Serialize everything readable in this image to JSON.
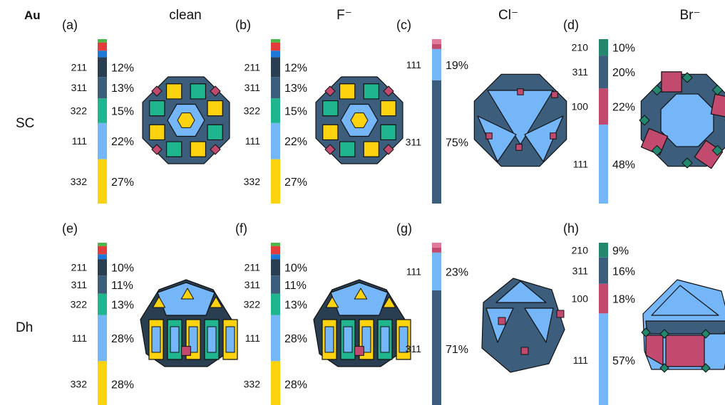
{
  "corner_label": "Au",
  "columns": [
    "clean",
    "F⁻",
    "Cl⁻",
    "Br⁻"
  ],
  "rows": [
    "SC",
    "Dh"
  ],
  "colors": {
    "332": "#FDD20E",
    "111": "#74B6F8",
    "322": "#1FB58F",
    "311": "#3C5E7C",
    "211": "#2A3E52",
    "210": "#23876E",
    "100": "#C24A6E",
    "blue": "#1E78D8",
    "red": "#E23C3C",
    "green": "#4CB848",
    "pink": "#E07A98"
  },
  "panels": [
    {
      "id": "(a)",
      "row": "SC",
      "column": "clean",
      "shape": "sc-rich",
      "bars": [
        {
          "facet": "332",
          "pct": 27,
          "label": "27%"
        },
        {
          "facet": "111",
          "pct": 22,
          "label": "22%"
        },
        {
          "facet": "322",
          "pct": 15,
          "label": "15%"
        },
        {
          "facet": "311",
          "pct": 13,
          "label": "13%"
        },
        {
          "facet": "211",
          "pct": 12,
          "label": "12%"
        },
        {
          "facet": "blue",
          "pct": 4
        },
        {
          "facet": "red",
          "pct": 5
        },
        {
          "facet": "green",
          "pct": 2
        }
      ]
    },
    {
      "id": "(b)",
      "row": "SC",
      "column": "F⁻",
      "shape": "sc-rich",
      "bars": [
        {
          "facet": "332",
          "pct": 27,
          "label": "27%"
        },
        {
          "facet": "111",
          "pct": 22,
          "label": "22%"
        },
        {
          "facet": "322",
          "pct": 15,
          "label": "15%"
        },
        {
          "facet": "311",
          "pct": 13,
          "label": "13%"
        },
        {
          "facet": "211",
          "pct": 12,
          "label": "12%"
        },
        {
          "facet": "blue",
          "pct": 4
        },
        {
          "facet": "red",
          "pct": 5
        },
        {
          "facet": "green",
          "pct": 2
        }
      ]
    },
    {
      "id": "(c)",
      "row": "SC",
      "column": "Cl⁻",
      "shape": "sc-cl",
      "bars": [
        {
          "facet": "311",
          "pct": 75,
          "label": "75%"
        },
        {
          "facet": "111",
          "pct": 19,
          "label": "19%"
        },
        {
          "facet": "100",
          "pct": 3
        },
        {
          "facet": "pink",
          "pct": 3
        }
      ]
    },
    {
      "id": "(d)",
      "row": "SC",
      "column": "Br⁻",
      "shape": "sc-br",
      "bars": [
        {
          "facet": "111",
          "pct": 48,
          "label": "48%"
        },
        {
          "facet": "100",
          "pct": 22,
          "label": "22%"
        },
        {
          "facet": "311",
          "pct": 20,
          "label": "20%"
        },
        {
          "facet": "210",
          "pct": 10,
          "label": "10%"
        }
      ]
    },
    {
      "id": "(e)",
      "row": "Dh",
      "column": "clean",
      "shape": "dh-rich",
      "bars": [
        {
          "facet": "332",
          "pct": 28,
          "label": "28%"
        },
        {
          "facet": "111",
          "pct": 28,
          "label": "28%"
        },
        {
          "facet": "322",
          "pct": 13,
          "label": "13%"
        },
        {
          "facet": "311",
          "pct": 11,
          "label": "11%"
        },
        {
          "facet": "211",
          "pct": 10,
          "label": "10%"
        },
        {
          "facet": "blue",
          "pct": 3
        },
        {
          "facet": "red",
          "pct": 5
        },
        {
          "facet": "green",
          "pct": 2
        }
      ]
    },
    {
      "id": "(f)",
      "row": "Dh",
      "column": "F⁻",
      "shape": "dh-rich",
      "bars": [
        {
          "facet": "332",
          "pct": 28,
          "label": "28%"
        },
        {
          "facet": "111",
          "pct": 28,
          "label": "28%"
        },
        {
          "facet": "322",
          "pct": 13,
          "label": "13%"
        },
        {
          "facet": "311",
          "pct": 11,
          "label": "11%"
        },
        {
          "facet": "211",
          "pct": 10,
          "label": "10%"
        },
        {
          "facet": "blue",
          "pct": 3
        },
        {
          "facet": "red",
          "pct": 5
        },
        {
          "facet": "green",
          "pct": 2
        }
      ]
    },
    {
      "id": "(g)",
      "row": "Dh",
      "column": "Cl⁻",
      "shape": "dh-cl",
      "bars": [
        {
          "facet": "311",
          "pct": 71,
          "label": "71%"
        },
        {
          "facet": "111",
          "pct": 23,
          "label": "23%"
        },
        {
          "facet": "100",
          "pct": 3
        },
        {
          "facet": "pink",
          "pct": 3
        }
      ]
    },
    {
      "id": "(h)",
      "row": "Dh",
      "column": "Br⁻",
      "shape": "dh-br",
      "bars": [
        {
          "facet": "111",
          "pct": 57,
          "label": "57%"
        },
        {
          "facet": "100",
          "pct": 18,
          "label": "18%"
        },
        {
          "facet": "311",
          "pct": 16,
          "label": "16%"
        },
        {
          "facet": "210",
          "pct": 9,
          "label": "9%"
        }
      ]
    }
  ]
}
